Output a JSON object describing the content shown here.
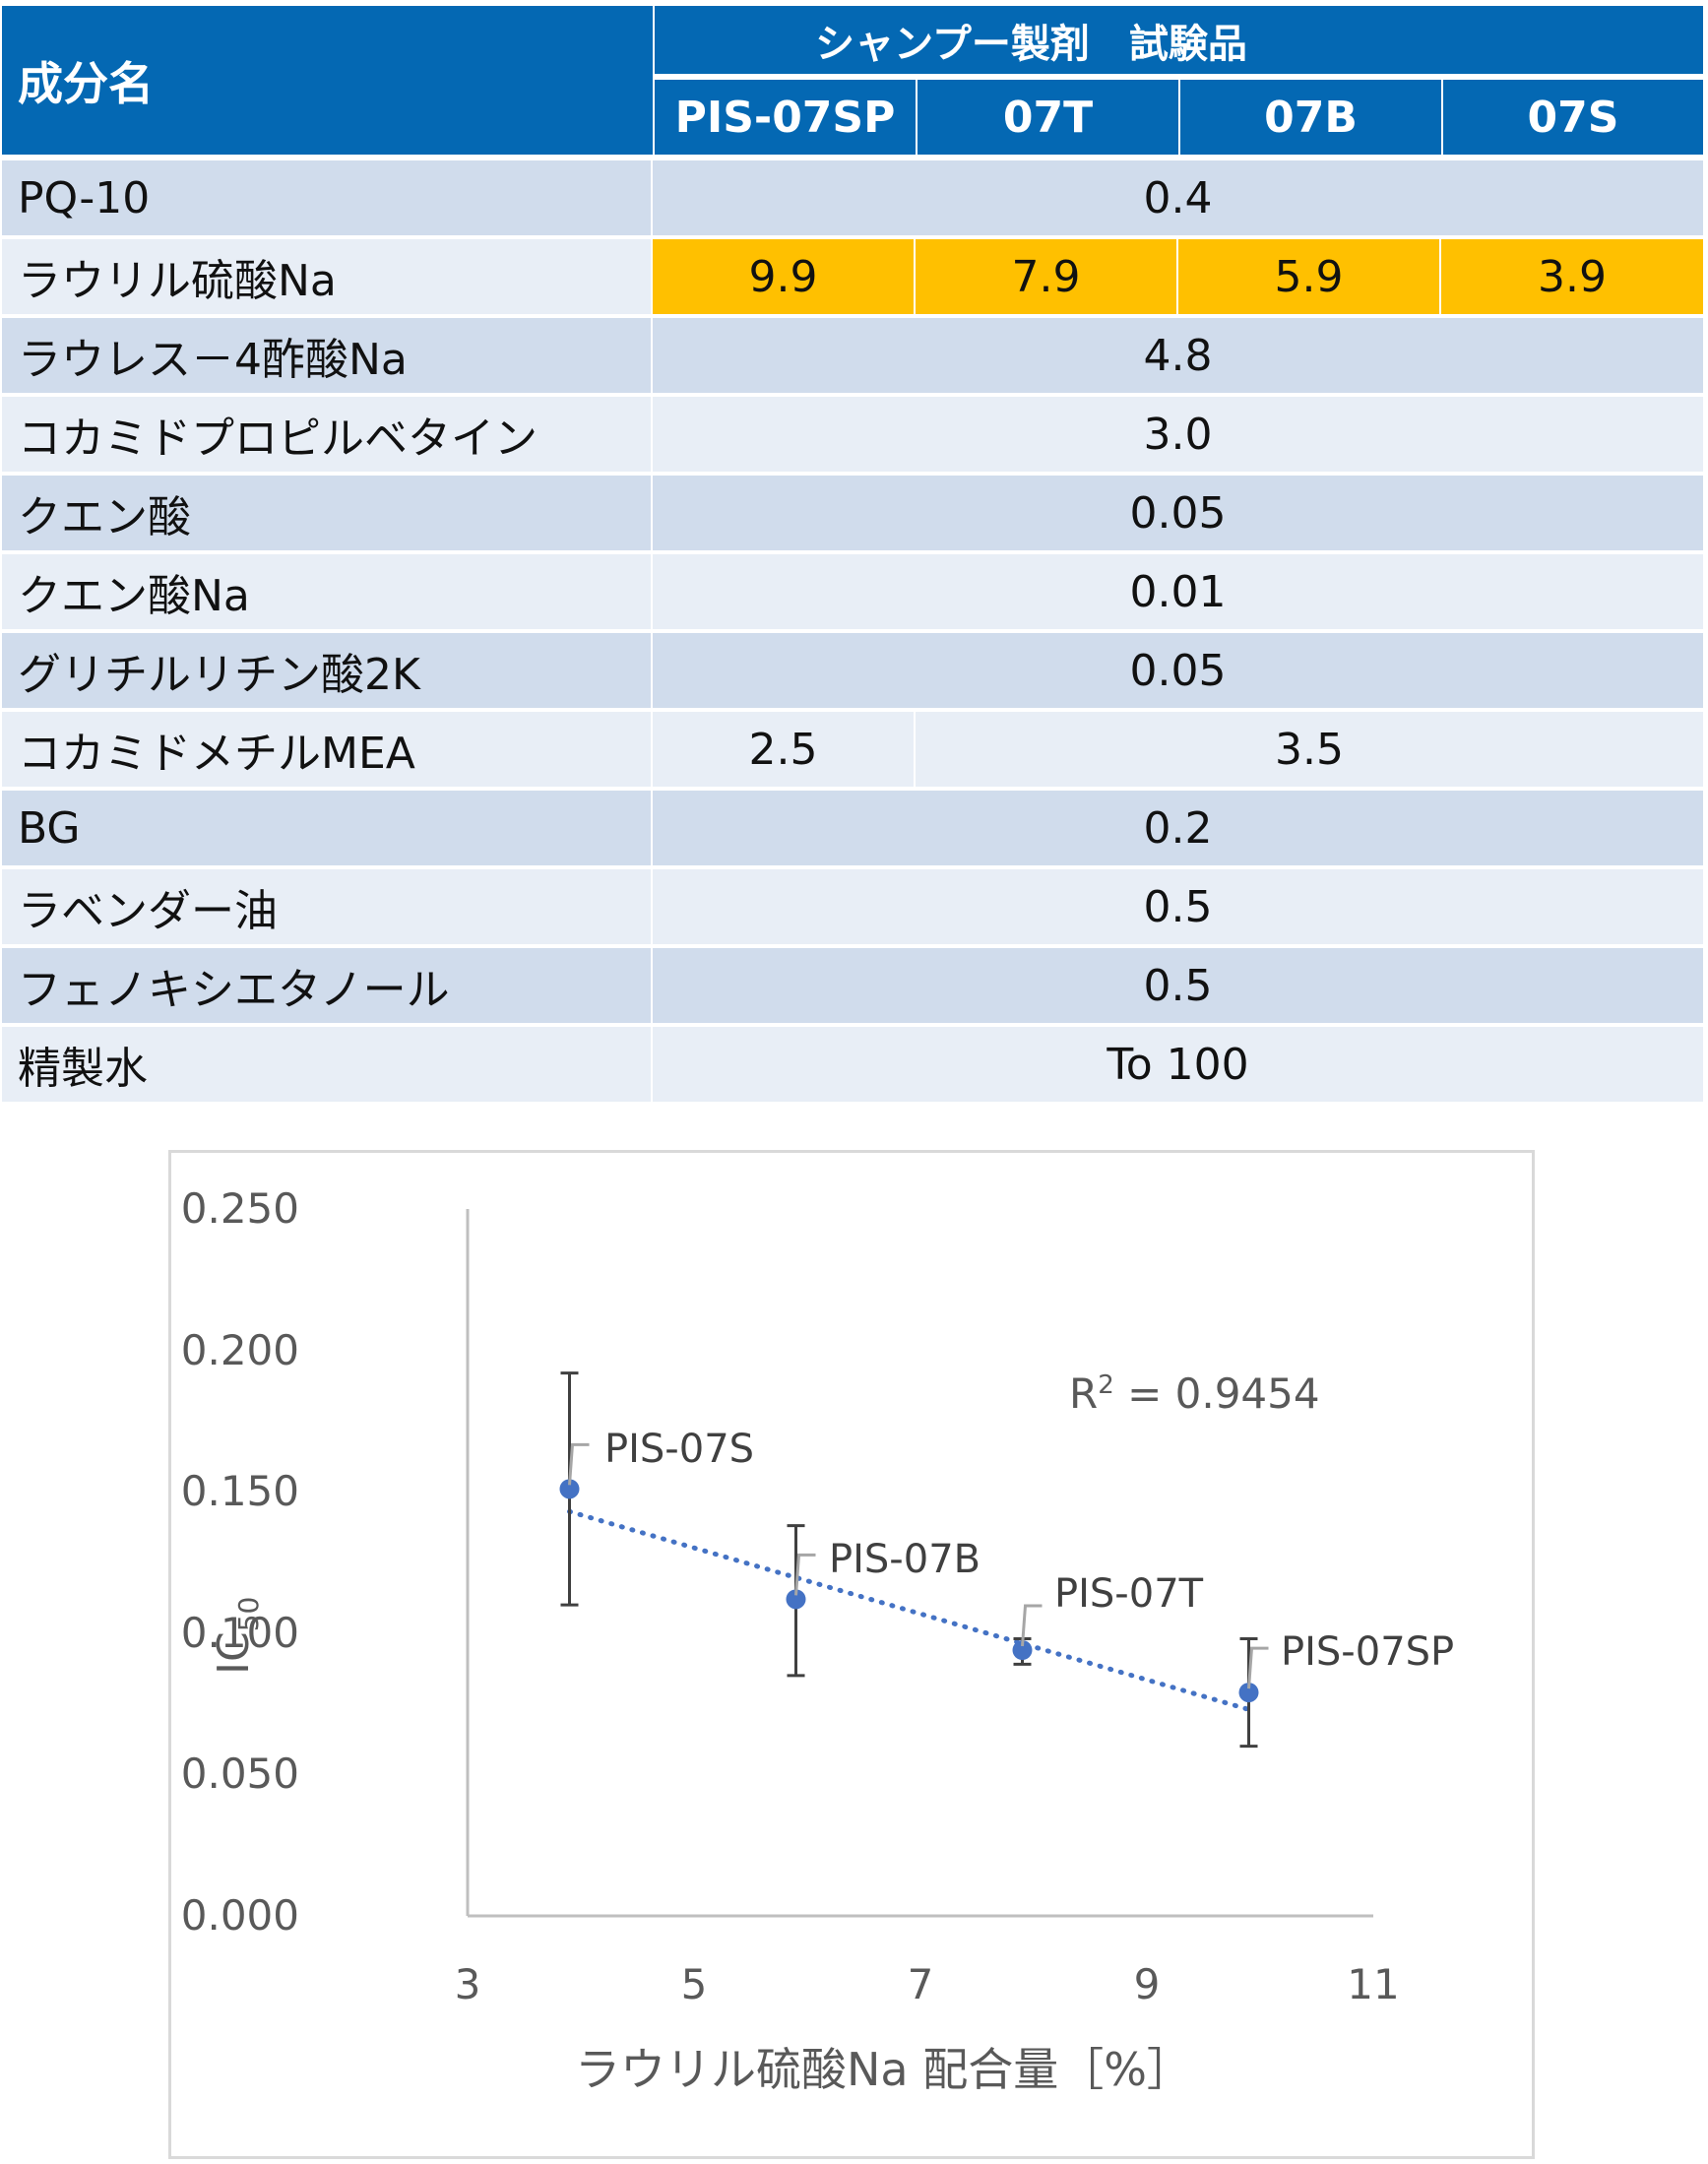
{
  "table": {
    "header": {
      "ingredient_col": "成分名",
      "group_label": "シャンプー製剤　試験品",
      "columns": [
        "PIS-07SP",
        "07T",
        "07B",
        "07S"
      ]
    },
    "rows": [
      {
        "name": "PQ-10",
        "values": [
          "0.4"
        ],
        "span": "all",
        "band": "a"
      },
      {
        "name": "ラウリル硫酸Na",
        "values": [
          "9.9",
          "7.9",
          "5.9",
          "3.9"
        ],
        "span": "each",
        "highlight": true
      },
      {
        "name": "ラウレス－4酢酸Na",
        "values": [
          "4.8"
        ],
        "span": "all",
        "band": "a"
      },
      {
        "name": "コカミドプロピルベタイン",
        "values": [
          "3.0"
        ],
        "span": "all",
        "band": "b"
      },
      {
        "name": "クエン酸",
        "values": [
          "0.05"
        ],
        "span": "all",
        "band": "a"
      },
      {
        "name": "クエン酸Na",
        "values": [
          "0.01"
        ],
        "span": "all",
        "band": "b"
      },
      {
        "name": "グリチルリチン酸2K",
        "values": [
          "0.05"
        ],
        "span": "all",
        "band": "a"
      },
      {
        "name": "コカミドメチルMEA",
        "values": [
          "2.5",
          "3.5"
        ],
        "span": "1+3",
        "band": "b"
      },
      {
        "name": "BG",
        "values": [
          "0.2"
        ],
        "span": "all",
        "band": "a"
      },
      {
        "name": "ラベンダー油",
        "values": [
          "0.5"
        ],
        "span": "all",
        "band": "b"
      },
      {
        "name": "フェノキシエタノール",
        "values": [
          "0.5"
        ],
        "span": "all",
        "band": "a"
      },
      {
        "name": "精製水",
        "values": [
          "To 100"
        ],
        "span": "all",
        "band": "b"
      }
    ],
    "colors": {
      "header": "#0468b3",
      "band_a": "#d0dcec",
      "band_b": "#e8eef6",
      "highlight": "#ffc000"
    }
  },
  "chart_data": {
    "type": "scatter",
    "title": "",
    "xlabel": "ラウリル硫酸Na 配合量［%］",
    "ylabel": "IC50",
    "ylabel_main": "IC",
    "ylabel_sub": "50",
    "xlim": [
      3,
      11
    ],
    "ylim": [
      0,
      0.25
    ],
    "x_ticks": [
      "3",
      "5",
      "7",
      "9",
      "11"
    ],
    "y_ticks": [
      "0.000",
      "0.050",
      "0.100",
      "0.150",
      "0.200",
      "0.250"
    ],
    "grid": false,
    "legend": null,
    "marker_color": "#4472c4",
    "series": [
      {
        "name": "IC50",
        "points": [
          {
            "label": "PIS-07S",
            "x": 3.9,
            "y": 0.151,
            "err_low": 0.11,
            "err_high": 0.192
          },
          {
            "label": "PIS-07B",
            "x": 5.9,
            "y": 0.112,
            "err_low": 0.085,
            "err_high": 0.138
          },
          {
            "label": "PIS-07T",
            "x": 7.9,
            "y": 0.094,
            "err_low": 0.089,
            "err_high": 0.098
          },
          {
            "label": "PIS-07SP",
            "x": 9.9,
            "y": 0.079,
            "err_low": 0.06,
            "err_high": 0.098
          }
        ]
      }
    ],
    "trendline": {
      "type": "linear",
      "style": "dotted",
      "x_start": 3.9,
      "y_start": 0.143,
      "x_end": 9.9,
      "y_end": 0.073,
      "r2_label": "R² = 0.9454",
      "r2_prefix": "R",
      "r2_sup": "2",
      "r2_value": " = 0.9454"
    },
    "annotations": [
      "R² = 0.9454",
      "PIS-07S",
      "PIS-07B",
      "PIS-07T",
      "PIS-07SP"
    ]
  }
}
